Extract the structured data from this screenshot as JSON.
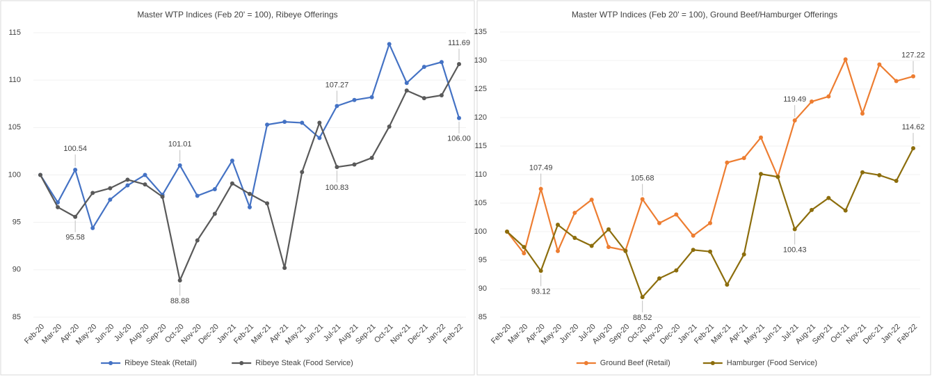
{
  "chart_data": [
    {
      "type": "line",
      "title": "Master WTP Indices (Feb 20' = 100), Ribeye Offerings",
      "categories": [
        "Feb-20",
        "Mar-20",
        "Apr-20",
        "May-20",
        "Jun-20",
        "Jul-20",
        "Aug-20",
        "Sep-20",
        "Oct-20",
        "Nov-20",
        "Dec-20",
        "Jan-21",
        "Feb-21",
        "Mar-21",
        "Apr-21",
        "May-21",
        "Jun-21",
        "Jul-21",
        "Aug-21",
        "Sep-21",
        "Oct-21",
        "Nov-21",
        "Dec-21",
        "Jan-22",
        "Feb-22"
      ],
      "ylim": [
        85,
        115
      ],
      "yticks": [
        85,
        90,
        95,
        100,
        105,
        110,
        115
      ],
      "grid": true,
      "legend": "bottom",
      "series": [
        {
          "name": "Ribeye Steak (Retail)",
          "color": "#4472c4",
          "values": [
            100,
            97.1,
            100.54,
            94.4,
            97.4,
            98.9,
            100.0,
            97.9,
            101.01,
            97.8,
            98.5,
            101.5,
            96.6,
            105.3,
            105.6,
            105.5,
            103.9,
            107.27,
            107.9,
            108.2,
            113.8,
            109.7,
            111.4,
            111.9,
            106.0
          ],
          "value_labels": [
            null,
            null,
            "100.54",
            null,
            null,
            null,
            null,
            null,
            "101.01",
            null,
            null,
            null,
            null,
            null,
            null,
            null,
            null,
            "107.27",
            null,
            null,
            null,
            null,
            null,
            null,
            "106.00"
          ]
        },
        {
          "name": "Ribeye Steak (Food Service)",
          "color": "#595959",
          "values": [
            100,
            96.6,
            95.58,
            98.1,
            98.6,
            99.5,
            99.0,
            97.7,
            88.88,
            93.1,
            95.9,
            99.1,
            98.0,
            97.0,
            90.2,
            100.3,
            105.5,
            100.83,
            101.1,
            101.8,
            105.1,
            108.9,
            108.1,
            108.4,
            111.69
          ],
          "value_labels": [
            null,
            null,
            "95.58",
            null,
            null,
            null,
            null,
            null,
            "88.88",
            null,
            null,
            null,
            null,
            null,
            null,
            null,
            null,
            "100.83",
            null,
            null,
            null,
            null,
            null,
            null,
            "111.69"
          ]
        }
      ]
    },
    {
      "type": "line",
      "title": "Master WTP Indices (Feb 20' = 100), Ground Beef/Hamburger Offerings",
      "categories": [
        "Feb-20",
        "Mar-20",
        "Apr-20",
        "May-20",
        "Jun-20",
        "Jul-20",
        "Aug-20",
        "Sep-20",
        "Oct-20",
        "Nov-20",
        "Dec-20",
        "Jan-21",
        "Feb-21",
        "Mar-21",
        "Apr-21",
        "May-21",
        "Jun-21",
        "Jul-21",
        "Aug-21",
        "Sep-21",
        "Oct-21",
        "Nov-21",
        "Dec-21",
        "Jan-22",
        "Feb-22"
      ],
      "ylim": [
        85,
        135
      ],
      "yticks": [
        85,
        90,
        95,
        100,
        105,
        110,
        115,
        120,
        125,
        130,
        135
      ],
      "grid": true,
      "legend": "bottom",
      "series": [
        {
          "name": "Ground Beef (Retail)",
          "color": "#ed7d31",
          "values": [
            100,
            96.2,
            107.49,
            96.6,
            103.3,
            105.6,
            97.3,
            96.7,
            105.68,
            101.5,
            103.0,
            99.3,
            101.5,
            112.1,
            112.9,
            116.5,
            109.6,
            119.49,
            122.8,
            123.7,
            130.2,
            120.7,
            129.3,
            126.4,
            127.22
          ],
          "value_labels": [
            null,
            null,
            "107.49",
            null,
            null,
            null,
            null,
            null,
            "105.68",
            null,
            null,
            null,
            null,
            null,
            null,
            null,
            null,
            "119.49",
            null,
            null,
            null,
            null,
            null,
            null,
            "127.22"
          ]
        },
        {
          "name": "Hamburger (Food Service)",
          "color": "#8c6d0c",
          "values": [
            100,
            97.3,
            93.12,
            101.2,
            98.9,
            97.5,
            100.4,
            96.6,
            88.52,
            91.8,
            93.2,
            96.8,
            96.5,
            90.7,
            96.0,
            110.1,
            109.6,
            100.43,
            103.8,
            105.9,
            103.7,
            110.4,
            109.9,
            108.9,
            114.62
          ],
          "value_labels": [
            null,
            null,
            "93.12",
            null,
            null,
            null,
            null,
            null,
            "88.52",
            null,
            null,
            null,
            null,
            null,
            null,
            null,
            null,
            "100.43",
            null,
            null,
            null,
            null,
            null,
            null,
            "114.62"
          ]
        }
      ]
    }
  ]
}
